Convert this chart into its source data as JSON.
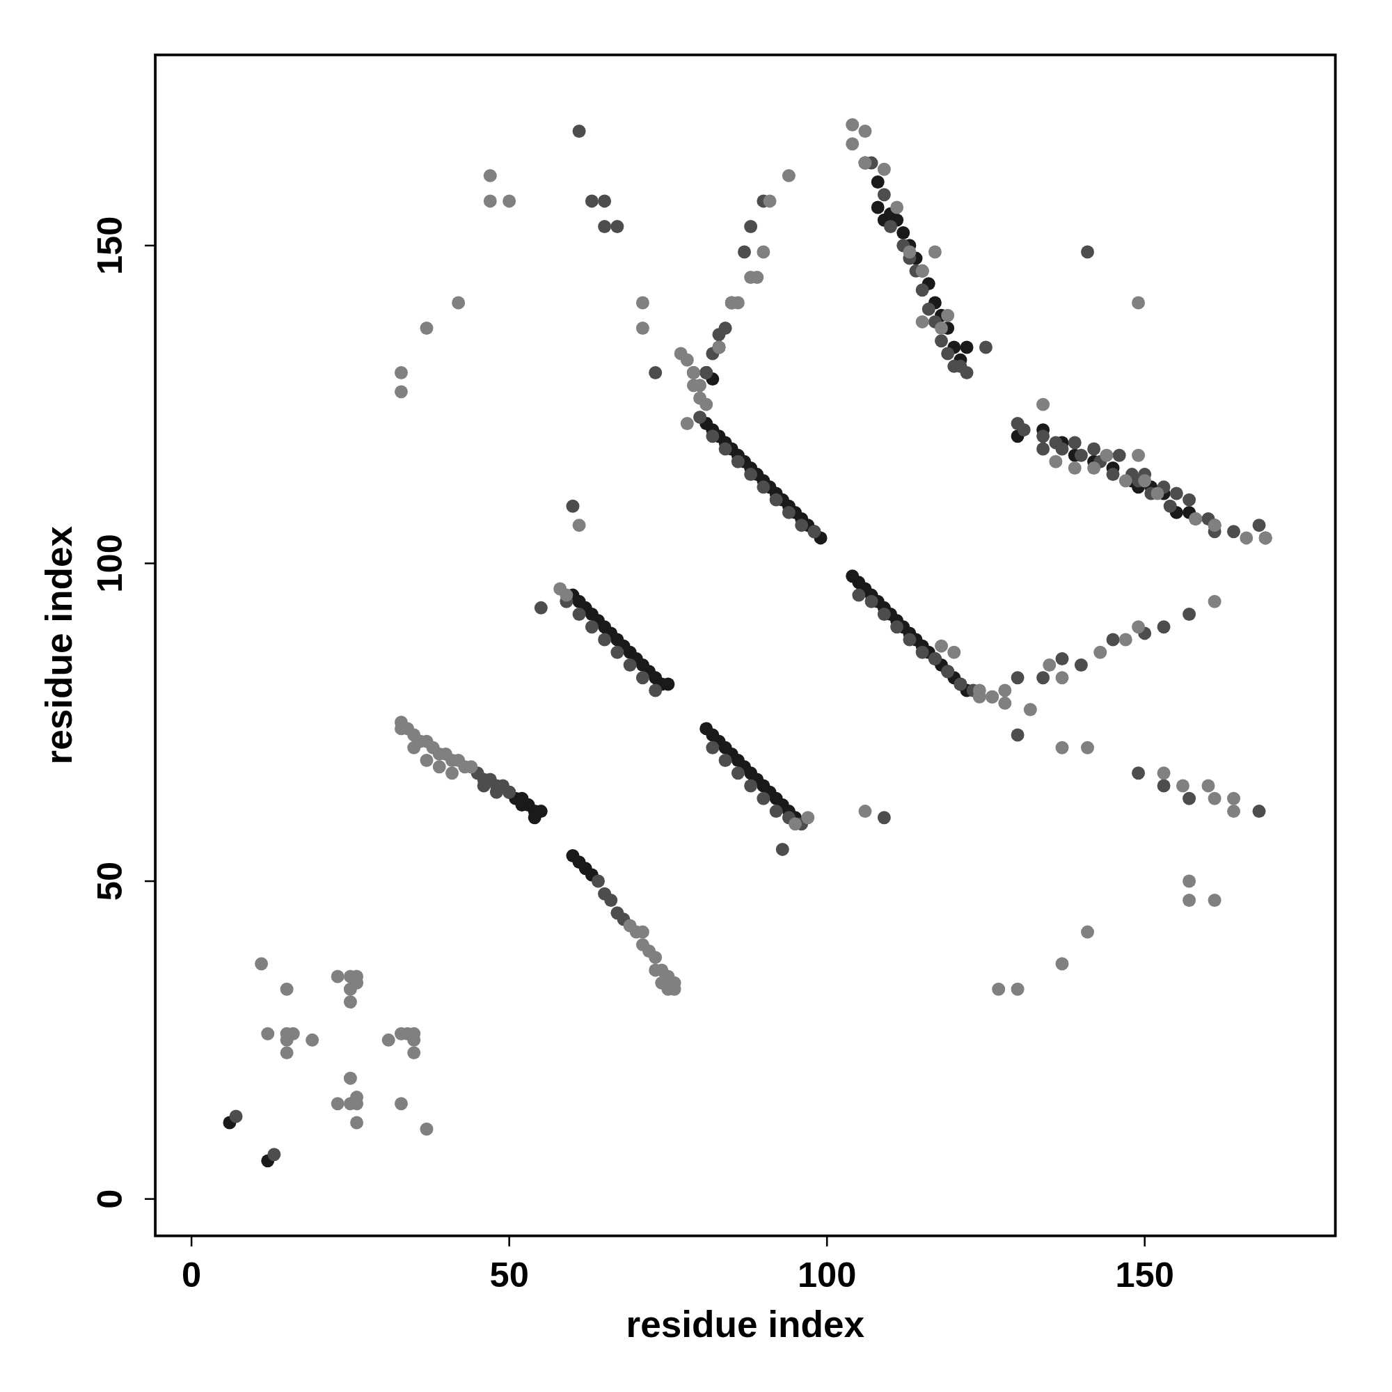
{
  "chart_data": {
    "type": "scatter",
    "xlabel": "residue index",
    "ylabel": "residue index",
    "xlim": [
      -5.7,
      180
    ],
    "ylim": [
      -5.8,
      180
    ],
    "xticks": [
      0,
      50,
      100,
      150
    ],
    "yticks": [
      0,
      50,
      100,
      150
    ],
    "grid": false,
    "marker": "circle",
    "series": [
      {
        "color": "#1a1a1a",
        "x": [
          50,
          51,
          52,
          53,
          54,
          55,
          52,
          54,
          60,
          61,
          62,
          63,
          60,
          61,
          62,
          63,
          64,
          65,
          66,
          67,
          68,
          69,
          70,
          71,
          72,
          73,
          74,
          75,
          81,
          82,
          83,
          84,
          85,
          86,
          87,
          88,
          89,
          90,
          91,
          92,
          93,
          94,
          95,
          81,
          82,
          83,
          84,
          85,
          86,
          87,
          88,
          89,
          90,
          91,
          92,
          93,
          94,
          95,
          96,
          97,
          98,
          99,
          104,
          105,
          106,
          107,
          108,
          109,
          110,
          111,
          112,
          113,
          114,
          115,
          116,
          117,
          118,
          119,
          120,
          121,
          122,
          106,
          108,
          108,
          109,
          110,
          111,
          112,
          113,
          114,
          115,
          116,
          117,
          118,
          119,
          120,
          121,
          122,
          81,
          82,
          83,
          130,
          134,
          137,
          139,
          142,
          145,
          148,
          149,
          151,
          153,
          155,
          157,
          161,
          6,
          12
        ],
        "values": [
          64,
          63,
          62,
          62,
          61,
          61,
          63,
          60,
          54,
          53,
          52,
          51,
          95,
          94,
          93,
          92,
          91,
          90,
          89,
          88,
          87,
          86,
          85,
          84,
          83,
          82,
          81,
          81,
          74,
          73,
          72,
          71,
          70,
          69,
          68,
          67,
          66,
          65,
          64,
          63,
          62,
          61,
          60,
          122,
          121,
          120,
          119,
          118,
          117,
          116,
          115,
          114,
          113,
          112,
          111,
          110,
          109,
          108,
          107,
          106,
          105,
          104,
          98,
          97,
          96,
          95,
          94,
          93,
          92,
          91,
          90,
          89,
          88,
          87,
          86,
          85,
          84,
          83,
          82,
          81,
          80,
          163,
          160,
          156,
          154,
          155,
          154,
          152,
          150,
          148,
          146,
          144,
          141,
          139,
          137,
          134,
          132,
          134,
          130,
          129,
          134,
          120,
          121,
          119,
          117,
          116,
          115,
          113,
          112,
          112,
          111,
          108,
          108,
          106,
          12,
          6
        ]
      },
      {
        "color": "#4d4d4d",
        "x": [
          45,
          46,
          47,
          48,
          49,
          50,
          46,
          48,
          64,
          65,
          66,
          67,
          68,
          59,
          61,
          63,
          65,
          67,
          69,
          71,
          73,
          82,
          84,
          86,
          88,
          90,
          92,
          94,
          96,
          80,
          82,
          84,
          86,
          88,
          90,
          92,
          94,
          96,
          98,
          105,
          107,
          109,
          111,
          113,
          115,
          117,
          119,
          121,
          123,
          107,
          109,
          110,
          112,
          113,
          114,
          115,
          116,
          117,
          118,
          119,
          120,
          121,
          122,
          125,
          79,
          81,
          82,
          83,
          84,
          85,
          87,
          88,
          90,
          61,
          63,
          65,
          65,
          67,
          130,
          131,
          134,
          134,
          136,
          137,
          139,
          140,
          142,
          143,
          145,
          146,
          148,
          149,
          150,
          151,
          153,
          154,
          155,
          157,
          158,
          160,
          161,
          164,
          168,
          169,
          130,
          134,
          137,
          140,
          145,
          150,
          157,
          55,
          60,
          73,
          93,
          109,
          130,
          149,
          153,
          157,
          168,
          141,
          153,
          7,
          13
        ],
        "values": [
          67,
          66,
          66,
          65,
          65,
          64,
          65,
          64,
          50,
          48,
          47,
          45,
          44,
          94,
          92,
          90,
          88,
          86,
          84,
          82,
          80,
          71,
          69,
          67,
          65,
          63,
          61,
          60,
          59,
          123,
          120,
          118,
          116,
          114,
          112,
          110,
          108,
          106,
          105,
          95,
          94,
          92,
          90,
          88,
          86,
          85,
          83,
          81,
          80,
          163,
          158,
          153,
          150,
          148,
          146,
          143,
          140,
          138,
          135,
          133,
          131,
          131,
          130,
          134,
          130,
          130,
          133,
          136,
          137,
          141,
          149,
          153,
          157,
          168,
          157,
          157,
          153,
          153,
          122,
          121,
          120,
          118,
          119,
          118,
          119,
          117,
          118,
          116,
          114,
          117,
          114,
          113,
          114,
          111,
          112,
          109,
          111,
          110,
          107,
          107,
          105,
          105,
          106,
          104,
          82,
          82,
          85,
          84,
          88,
          89,
          92,
          93,
          109,
          130,
          55,
          60,
          73,
          67,
          65,
          63,
          61,
          149,
          90,
          13,
          7
        ]
      },
      {
        "color": "#808080",
        "x": [
          33,
          34,
          35,
          36,
          37,
          38,
          39,
          40,
          41,
          42,
          43,
          44,
          33,
          35,
          37,
          39,
          41,
          69,
          70,
          71,
          72,
          73,
          74,
          75,
          76,
          71,
          73,
          75,
          74,
          76,
          58,
          59,
          95,
          97,
          80,
          81,
          79,
          78,
          118,
          120,
          124,
          126,
          128,
          104,
          104,
          106,
          106,
          109,
          111,
          113,
          115,
          117,
          119,
          115,
          118,
          77,
          78,
          79,
          80,
          83,
          85,
          86,
          88,
          89,
          90,
          91,
          94,
          124,
          126,
          128,
          132,
          135,
          137,
          143,
          147,
          149,
          161,
          134,
          136,
          139,
          142,
          144,
          147,
          149,
          150,
          152,
          158,
          161,
          166,
          169,
          61,
          71,
          71,
          106,
          137,
          141,
          153,
          156,
          160,
          161,
          164,
          164,
          157,
          157,
          161,
          127,
          130,
          137,
          141,
          149,
          47,
          47,
          50,
          33,
          33,
          37,
          42,
          11,
          12,
          15,
          15,
          15,
          15,
          16,
          19,
          23,
          23,
          25,
          25,
          25,
          25,
          25,
          26,
          26,
          26,
          26,
          26,
          31,
          33,
          33,
          34,
          35,
          35,
          35,
          37
        ],
        "values": [
          75,
          74,
          73,
          72,
          72,
          71,
          70,
          70,
          69,
          69,
          68,
          68,
          74,
          71,
          69,
          68,
          67,
          43,
          42,
          40,
          39,
          38,
          36,
          35,
          34,
          42,
          36,
          33,
          34,
          33,
          96,
          95,
          59,
          60,
          126,
          125,
          128,
          122,
          87,
          86,
          79,
          79,
          80,
          169,
          166,
          168,
          163,
          162,
          156,
          149,
          146,
          149,
          139,
          138,
          137,
          133,
          132,
          130,
          128,
          134,
          141,
          141,
          145,
          145,
          149,
          157,
          161,
          80,
          79,
          78,
          77,
          84,
          82,
          86,
          88,
          90,
          94,
          125,
          116,
          115,
          115,
          117,
          113,
          117,
          113,
          111,
          107,
          106,
          104,
          104,
          106,
          141,
          137,
          61,
          71,
          71,
          67,
          65,
          65,
          63,
          63,
          61,
          50,
          47,
          47,
          33,
          33,
          37,
          42,
          141,
          161,
          157,
          157,
          130,
          127,
          137,
          141,
          37,
          26,
          33,
          26,
          25,
          23,
          26,
          25,
          35,
          15,
          35,
          33,
          31,
          19,
          15,
          35,
          34,
          16,
          15,
          12,
          25,
          26,
          15,
          26,
          26,
          25,
          23,
          11
        ]
      }
    ]
  }
}
